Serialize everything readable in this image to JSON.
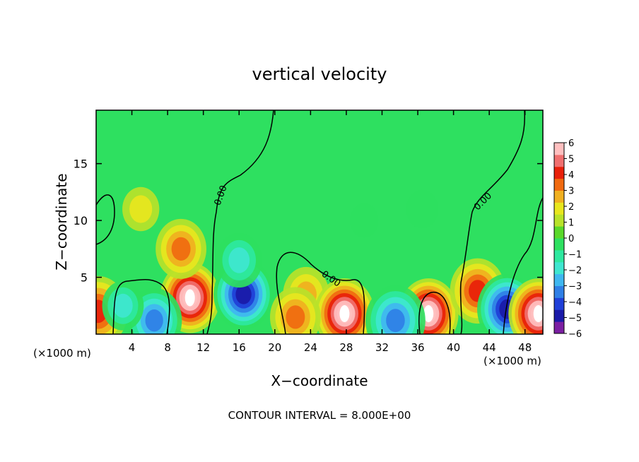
{
  "chart_data": {
    "type": "heatmap",
    "title": "vertical velocity",
    "xlabel": "X−coordinate",
    "ylabel": "Z−coordinate",
    "x_unit_left": "(×1000 m)",
    "x_unit_right": "(×1000 m)",
    "footer": "CONTOUR INTERVAL = 8.000E+00",
    "x_ticks": [
      "4",
      "8",
      "12",
      "16",
      "20",
      "24",
      "28",
      "32",
      "36",
      "40",
      "44",
      "48"
    ],
    "y_ticks": [
      "5",
      "10",
      "15"
    ],
    "xlim": [
      0,
      50
    ],
    "ylim": [
      0,
      19.7
    ],
    "colorbar": {
      "ticks": [
        "6",
        "5",
        "4",
        "3",
        "2",
        "1",
        "0",
        "−1",
        "−2",
        "−3",
        "−4",
        "−5",
        "−6"
      ],
      "range": [
        -6,
        6
      ],
      "colors": [
        "#7b1fa2",
        "#1a1aa8",
        "#1f3fd8",
        "#2f7fe6",
        "#3fb7f0",
        "#3fe6d0",
        "#2ee8a0",
        "#2ee060",
        "#5ad82a",
        "#b8e22a",
        "#e8e61e",
        "#f0b020",
        "#f06a10",
        "#e8200a",
        "#f07070",
        "#ffc0c0"
      ]
    },
    "contour_labels": [
      "0.00",
      "0.00",
      "0.00"
    ],
    "features": [
      {
        "x": 10.5,
        "z": 3.2,
        "w": 6.0
      },
      {
        "x": 9.5,
        "z": 7.5,
        "w": 3.0
      },
      {
        "x": 5,
        "z": 11,
        "w": 1.5
      },
      {
        "x": 16.5,
        "z": 3.5,
        "w": -5.0
      },
      {
        "x": 16,
        "z": 6.5,
        "w": -2.5
      },
      {
        "x": 23.5,
        "z": 3.5,
        "w": 2.5
      },
      {
        "x": 27.8,
        "z": 1.8,
        "w": 6.0
      },
      {
        "x": 37.2,
        "z": 1.8,
        "w": 6.0
      },
      {
        "x": 42.7,
        "z": 3.8,
        "w": 3.5
      },
      {
        "x": 46,
        "z": 2.2,
        "w": -5.0
      },
      {
        "x": 49.5,
        "z": 1.8,
        "w": 6.0
      },
      {
        "x": 0.2,
        "z": 2.0,
        "w": 4.0
      },
      {
        "x": 33.5,
        "z": 1.2,
        "w": -4.0
      },
      {
        "x": 6.5,
        "z": 1.2,
        "w": -3.5
      },
      {
        "x": 3.0,
        "z": 2.5,
        "w": -2.0
      },
      {
        "x": 22.3,
        "z": 1.5,
        "w": 3.0
      },
      {
        "x": 36.5,
        "z": 11,
        "w": -1.0
      },
      {
        "x": 30,
        "z": 10,
        "w": -0.6
      }
    ]
  }
}
